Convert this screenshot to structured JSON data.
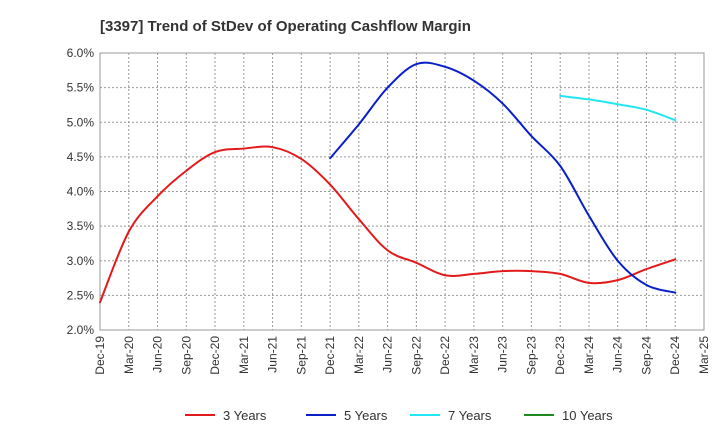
{
  "chart_data": {
    "type": "line",
    "title": "[3397]  Trend of StDev of Operating Cashflow Margin",
    "xlabel": "",
    "ylabel": "",
    "ylim": [
      0.02,
      0.06
    ],
    "y_ticks": [
      0.02,
      0.025,
      0.03,
      0.035,
      0.04,
      0.045,
      0.05,
      0.055,
      0.06
    ],
    "y_tick_labels": [
      "2.0%",
      "2.5%",
      "3.0%",
      "3.5%",
      "4.0%",
      "4.5%",
      "5.0%",
      "5.5%",
      "6.0%"
    ],
    "x_tick_labels": [
      "Dec-19",
      "Mar-20",
      "Jun-20",
      "Sep-20",
      "Dec-20",
      "Mar-21",
      "Jun-21",
      "Sep-21",
      "Dec-21",
      "Mar-22",
      "Jun-22",
      "Sep-22",
      "Dec-22",
      "Mar-23",
      "Jun-23",
      "Sep-23",
      "Dec-23",
      "Mar-24",
      "Jun-24",
      "Sep-24",
      "Dec-24",
      "Mar-25"
    ],
    "grid": true,
    "legend_position": "bottom",
    "series": [
      {
        "name": "3 Years",
        "color": "#e31a1c",
        "x": [
          "Dec-19",
          "Mar-20",
          "Jun-20",
          "Sep-20",
          "Dec-20",
          "Mar-21",
          "Jun-21",
          "Sep-21",
          "Dec-21",
          "Mar-22",
          "Jun-22",
          "Sep-22",
          "Dec-22",
          "Mar-23",
          "Jun-23",
          "Sep-23",
          "Dec-23",
          "Mar-24",
          "Jun-24",
          "Sep-24",
          "Dec-24"
        ],
        "values": [
          0.024,
          0.0342,
          0.0393,
          0.043,
          0.0457,
          0.0462,
          0.0464,
          0.0447,
          0.041,
          0.036,
          0.0315,
          0.0297,
          0.0279,
          0.0281,
          0.0285,
          0.0285,
          0.0281,
          0.0268,
          0.0272,
          0.0288,
          0.0302
        ]
      },
      {
        "name": "5 Years",
        "color": "#0a1fc8",
        "x": [
          "Dec-21",
          "Mar-22",
          "Jun-22",
          "Sep-22",
          "Dec-22",
          "Mar-23",
          "Jun-23",
          "Sep-23",
          "Dec-23",
          "Mar-24",
          "Jun-24",
          "Sep-24",
          "Dec-24"
        ],
        "values": [
          0.0448,
          0.0497,
          0.055,
          0.0584,
          0.058,
          0.056,
          0.0527,
          0.048,
          0.0437,
          0.0365,
          0.03,
          0.0265,
          0.0254
        ]
      },
      {
        "name": "7 Years",
        "color": "#22e6f2",
        "x": [
          "Dec-23",
          "Mar-24",
          "Jun-24",
          "Sep-24",
          "Dec-24"
        ],
        "values": [
          0.0538,
          0.0533,
          0.0526,
          0.0518,
          0.0503
        ]
      },
      {
        "name": "10 Years",
        "color": "#1f8a1f",
        "x": [],
        "values": []
      }
    ]
  }
}
